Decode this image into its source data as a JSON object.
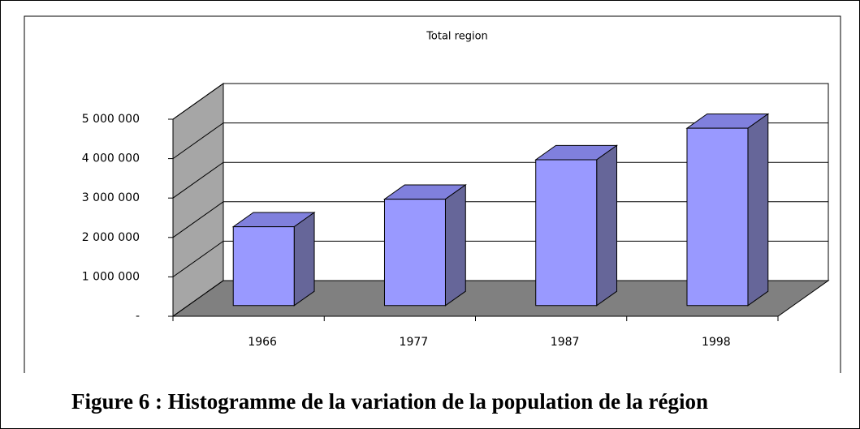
{
  "chart_data": {
    "type": "bar3d",
    "title": "Total region",
    "categories": [
      "1966",
      "1977",
      "1987",
      "1998"
    ],
    "values": [
      2000000,
      2700000,
      3700000,
      4500000
    ],
    "color": "#9999ff",
    "side_color": "#666699",
    "ylim": [
      0,
      5000000
    ],
    "yticks": [
      {
        "value": 0,
        "label": "-"
      },
      {
        "value": 1000000,
        "label": "1 000 000"
      },
      {
        "value": 2000000,
        "label": "2 000 000"
      },
      {
        "value": 3000000,
        "label": "3 000 000"
      },
      {
        "value": 4000000,
        "label": "4 000 000"
      },
      {
        "value": 5000000,
        "label": "5 000 000"
      }
    ],
    "grid": true
  },
  "caption": "Figure 6 : Histogramme de la variation de la population de la région"
}
